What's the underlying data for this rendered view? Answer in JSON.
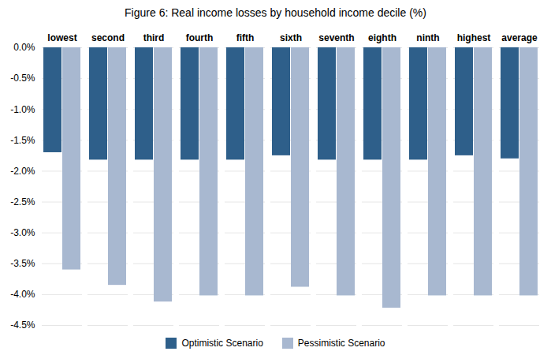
{
  "chart_data": {
    "type": "bar",
    "title": "Figure 6:  Real income losses by household income decile (%)",
    "categories": [
      "lowest",
      "second",
      "third",
      "fourth",
      "fifth",
      "sixth",
      "seventh",
      "eighth",
      "ninth",
      "highest",
      "average"
    ],
    "series": [
      {
        "name": "Optimistic Scenario",
        "color": "#2E5F8A",
        "values": [
          -1.7,
          -1.82,
          -1.82,
          -1.82,
          -1.82,
          -1.75,
          -1.82,
          -1.82,
          -1.82,
          -1.75,
          -1.8
        ]
      },
      {
        "name": "Pessimistic Scenario",
        "color": "#A8B8D0",
        "values": [
          -3.6,
          -3.85,
          -4.12,
          -4.02,
          -4.02,
          -3.88,
          -4.02,
          -4.22,
          -4.02,
          -4.02,
          -4.02
        ]
      }
    ],
    "ylim": [
      -4.5,
      0.0
    ],
    "yticks": [
      {
        "value": 0.0,
        "label": "0.0%"
      },
      {
        "value": -0.5,
        "label": "-0.5%"
      },
      {
        "value": -1.0,
        "label": "-1.0%"
      },
      {
        "value": -1.5,
        "label": "-1.5%"
      },
      {
        "value": -2.0,
        "label": "-2.0%"
      },
      {
        "value": -2.5,
        "label": "-2.5%"
      },
      {
        "value": -3.0,
        "label": "-3.0%"
      },
      {
        "value": -3.5,
        "label": "-3.5%"
      },
      {
        "value": -4.0,
        "label": "-4.0%"
      },
      {
        "value": -4.5,
        "label": "-4.5%"
      }
    ],
    "grid": true,
    "legend": "bottom"
  }
}
